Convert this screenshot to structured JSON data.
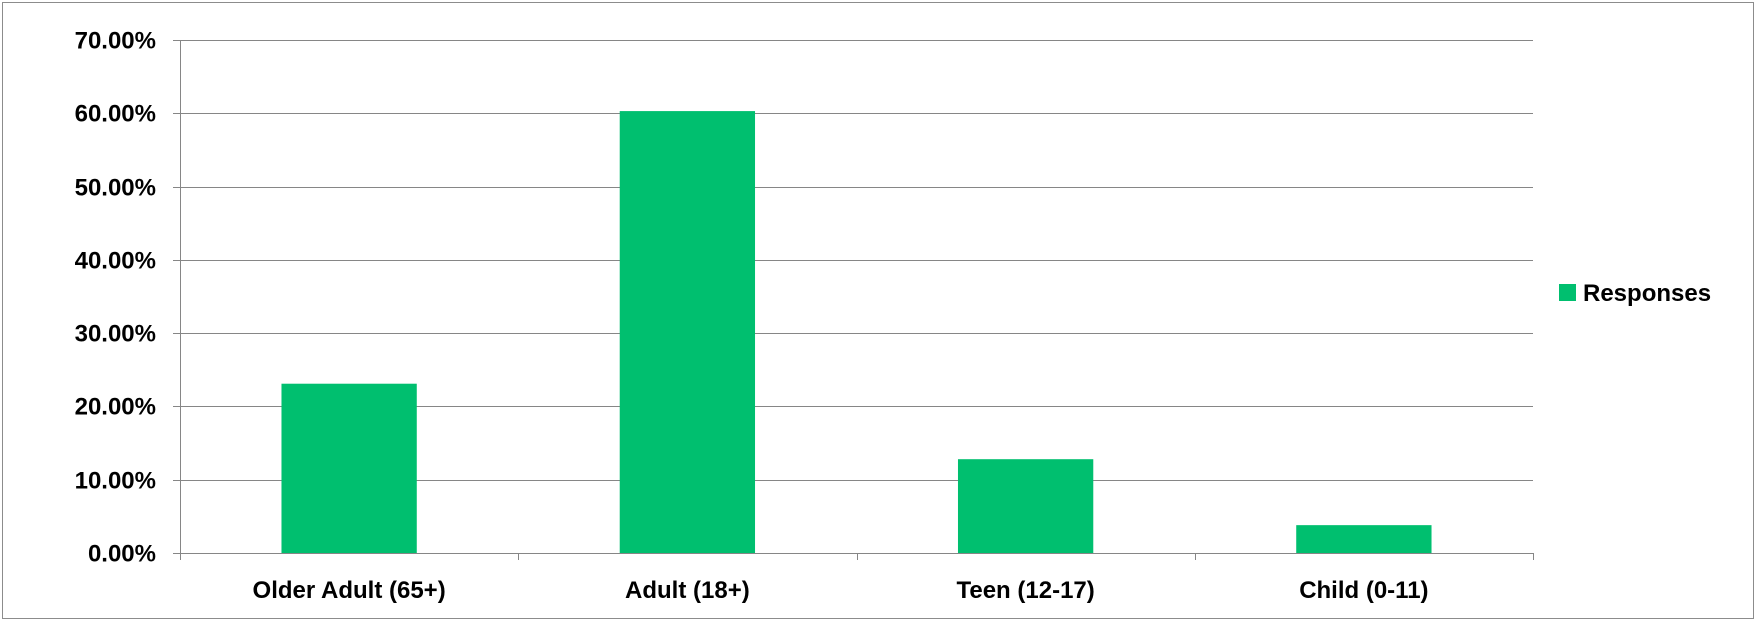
{
  "chart_data": {
    "type": "bar",
    "categories": [
      "Older Adult (65+)",
      "Adult (18+)",
      "Teen (12-17)",
      "Child (0-11)"
    ],
    "series": [
      {
        "name": "Responses",
        "values": [
          23.1,
          60.3,
          12.8,
          3.8
        ],
        "color": "#00bf6f"
      }
    ],
    "ylim": [
      0,
      70
    ],
    "y_ticks": [
      0,
      10,
      20,
      30,
      40,
      50,
      60,
      70
    ],
    "y_tick_labels": [
      "0.00%",
      "10.00%",
      "20.00%",
      "30.00%",
      "40.00%",
      "50.00%",
      "60.00%",
      "70.00%"
    ],
    "grid": true,
    "legend_position": "right",
    "title": "",
    "xlabel": "",
    "ylabel": ""
  }
}
